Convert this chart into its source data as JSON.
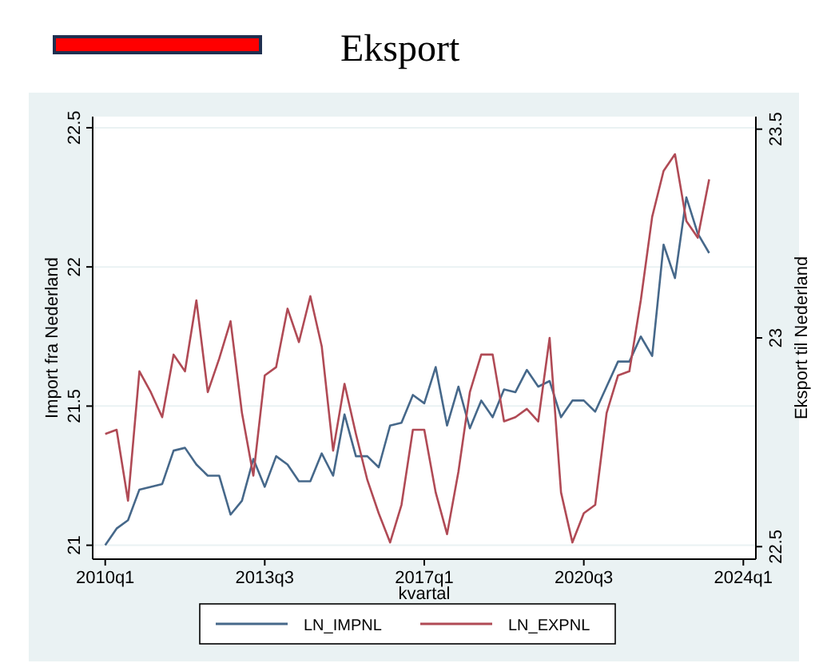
{
  "chart_data": {
    "type": "line",
    "xlabel": "kvartal",
    "ylabel": "Import fra Nederland",
    "y2label": "Eksport til Nederland",
    "annotations": [
      "Eksport"
    ],
    "categories": [
      "2010q1",
      null,
      null,
      null,
      null,
      null,
      null,
      null,
      null,
      null,
      null,
      null,
      null,
      null,
      "2013q3",
      null,
      null,
      null,
      null,
      null,
      null,
      null,
      null,
      null,
      null,
      null,
      null,
      null,
      "2017q1",
      null,
      null,
      null,
      null,
      null,
      null,
      null,
      null,
      null,
      null,
      null,
      null,
      null,
      "2020q3",
      null,
      null,
      null,
      null,
      null,
      null,
      null,
      null,
      null,
      null,
      null,
      null,
      null,
      "2024q1"
    ],
    "series": [
      {
        "name": "LN_IMPNL",
        "color": "#46688a",
        "values": [
          21.0,
          21.06,
          21.09,
          21.2,
          21.21,
          21.22,
          21.34,
          21.35,
          21.29,
          21.25,
          21.25,
          21.11,
          21.16,
          21.31,
          21.21,
          21.32,
          21.29,
          21.23,
          21.23,
          21.33,
          21.25,
          21.47,
          21.32,
          21.32,
          21.28,
          21.43,
          21.44,
          21.54,
          21.51,
          21.64,
          21.43,
          21.57,
          21.42,
          21.52,
          21.46,
          21.56,
          21.55,
          21.63,
          21.57,
          21.59,
          21.46,
          21.52,
          21.52,
          21.48,
          21.57,
          21.66,
          21.66,
          21.75,
          21.68,
          22.08,
          21.96,
          22.25,
          22.12,
          22.05,
          null,
          null,
          null
        ]
      },
      {
        "name": "LN_EXPNL",
        "color": "#b04a55",
        "axis": "y2",
        "values": [
          22.77,
          22.78,
          22.61,
          22.92,
          22.87,
          22.81,
          22.96,
          22.92,
          23.09,
          22.87,
          22.95,
          23.04,
          22.82,
          22.67,
          22.91,
          22.93,
          23.07,
          22.99,
          23.1,
          22.98,
          22.73,
          22.89,
          22.77,
          22.66,
          22.58,
          22.51,
          22.6,
          22.78,
          22.78,
          22.63,
          22.53,
          22.68,
          22.87,
          22.96,
          22.96,
          22.8,
          22.81,
          22.83,
          22.8,
          23.0,
          22.63,
          22.51,
          22.58,
          22.6,
          22.82,
          22.91,
          22.92,
          23.09,
          23.29,
          23.4,
          23.44,
          23.28,
          23.24,
          23.38,
          null,
          null,
          null
        ]
      }
    ],
    "ylim": [
      20.95,
      22.54
    ],
    "yticks": [
      21,
      21.5,
      22,
      22.5
    ],
    "y2lim": [
      22.47,
      23.53
    ],
    "y2ticks": [
      22.5,
      23,
      23.5
    ],
    "grid": "y",
    "legend": "bottom",
    "marker": "none",
    "line_style": "solid"
  }
}
